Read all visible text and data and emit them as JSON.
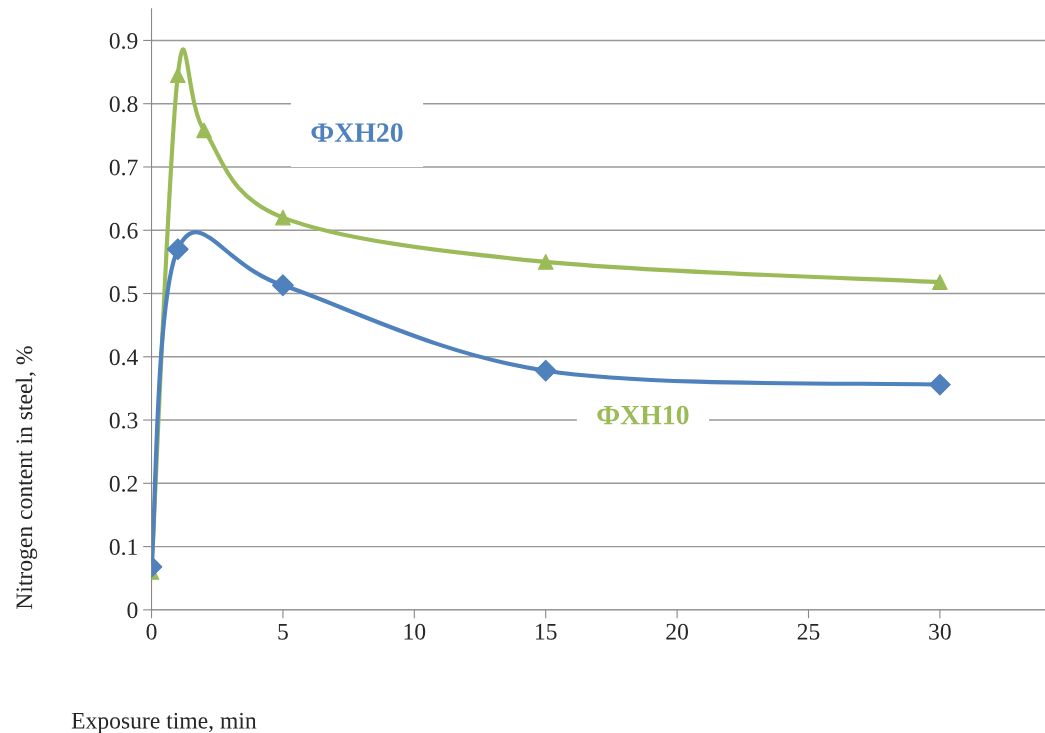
{
  "chart_data": {
    "type": "line",
    "xlabel": "Exposure time, min",
    "ylabel": "Nitrogen content in steel, %",
    "xlim": [
      0,
      34
    ],
    "xticks": [
      0,
      5,
      10,
      15,
      20,
      25,
      30
    ],
    "ylim": [
      0,
      0.95
    ],
    "yticks": [
      0,
      0.1,
      0.2,
      0.3,
      0.4,
      0.5,
      0.6,
      0.7,
      0.8,
      0.9
    ],
    "grid": "y",
    "legend": false,
    "line_style": "solid",
    "series": [
      {
        "name": "ФХН10",
        "color": "#9bbb59",
        "marker": "triangle",
        "x": [
          0,
          1,
          2,
          5,
          15,
          30
        ],
        "values": [
          0.06,
          0.845,
          0.758,
          0.62,
          0.55,
          0.518
        ]
      },
      {
        "name": "ФХН20",
        "color": "#4f81bd",
        "marker": "diamond",
        "x": [
          0,
          1,
          5,
          15,
          30
        ],
        "values": [
          0.068,
          0.57,
          0.513,
          0.378,
          0.356
        ]
      }
    ]
  }
}
